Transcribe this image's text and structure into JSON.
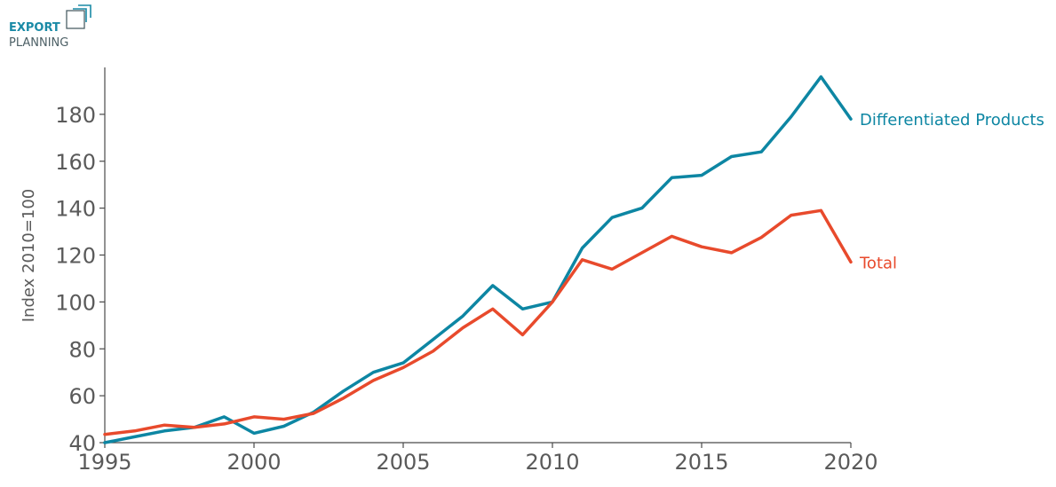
{
  "logo": {
    "line1": "EXPORT",
    "line2": "PLANNING",
    "color_primary": "#1a8aa6",
    "color_secondary": "#4d6066"
  },
  "chart_data": {
    "type": "line",
    "x": [
      1995,
      1996,
      1997,
      1998,
      1999,
      2000,
      2001,
      2002,
      2003,
      2004,
      2005,
      2006,
      2007,
      2008,
      2009,
      2010,
      2011,
      2012,
      2013,
      2014,
      2015,
      2016,
      2017,
      2018,
      2019,
      2020
    ],
    "series": [
      {
        "name": "Differentiated Products",
        "color": "#0d86a3",
        "values": [
          40,
          42.5,
          45,
          46.5,
          51,
          44,
          47,
          53,
          62,
          70,
          74,
          84,
          94,
          107,
          97,
          100,
          123,
          136,
          140,
          153,
          154,
          162,
          164,
          179,
          196,
          178
        ]
      },
      {
        "name": "Total",
        "color": "#e84a2c",
        "values": [
          43.5,
          45,
          47.5,
          46.5,
          48,
          51,
          50,
          52.5,
          59,
          66.5,
          72,
          79,
          89,
          97,
          86,
          100,
          118,
          114,
          121,
          128,
          123.5,
          121,
          127.5,
          137,
          139,
          117
        ]
      }
    ],
    "title": "",
    "xlabel": "",
    "ylabel": "Index 2010=100",
    "xlim": [
      1995,
      2020
    ],
    "ylim": [
      40,
      200
    ],
    "xticks": [
      1995,
      2000,
      2005,
      2010,
      2015,
      2020
    ],
    "yticks": [
      40,
      60,
      80,
      100,
      120,
      140,
      160,
      180
    ],
    "grid": false,
    "legend": "inline labels at line ends"
  }
}
